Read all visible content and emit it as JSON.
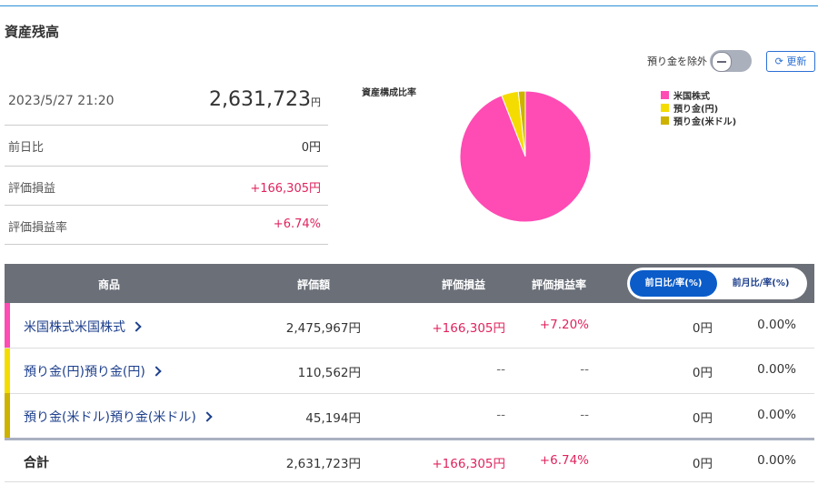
{
  "header": {
    "title": "資産残高"
  },
  "controls": {
    "exclude_label": "預り金を除外",
    "refresh": "更新"
  },
  "summary": {
    "datetime": "2023/5/27 21:20",
    "total": "2,631,723",
    "total_unit": "円",
    "rows": [
      [
        "前日比",
        "0円"
      ],
      [
        "評価損益",
        "+166,305円"
      ],
      [
        "評価損益率",
        "+6.74%"
      ]
    ]
  },
  "chart_data": {
    "type": "pie",
    "title": "資産構成比率",
    "categories": [
      "米国株式",
      "預り金(円)",
      "預り金(米ドル)"
    ],
    "values": [
      2475967,
      110562,
      45194
    ],
    "colors": [
      "#ff4bb4",
      "#f5dc00",
      "#cdb200"
    ]
  },
  "table": {
    "header": [
      "商品",
      "評価額",
      "評価損益",
      "評価損益率"
    ],
    "tabs": [
      "前日比/率(%)",
      "前月比/率(%)"
    ],
    "rows": [
      [
        "米国株式",
        "2,475,967円",
        "+166,305円",
        "+7.20%",
        "0円",
        "0.00%"
      ],
      [
        "預り金(円)",
        "110,562円",
        "--",
        "--",
        "0円",
        "0.00%"
      ],
      [
        "預り金(米ドル)",
        "45,194円",
        "--",
        "--",
        "0円",
        "0.00%"
      ]
    ],
    "total": [
      "合計",
      "2,631,723円",
      "+166,305円",
      "+6.74%",
      "0円",
      "0.00%"
    ]
  }
}
